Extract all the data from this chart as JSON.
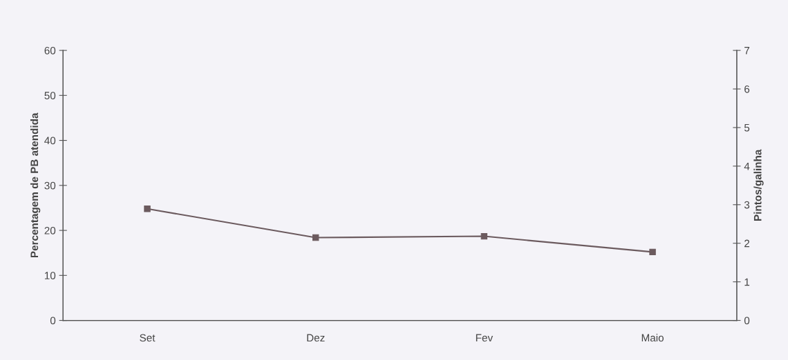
{
  "chart_data": {
    "type": "line",
    "categories": [
      "Set",
      "Dez",
      "Fev",
      "Maio"
    ],
    "series": [
      {
        "color": "#6b5a5e",
        "values": [
          24.8,
          18.4,
          18.7,
          15.2
        ]
      }
    ],
    "ylabel": "Percentagem de PB atendida",
    "y2label": "Pintos/galinha",
    "ylim": [
      0,
      60
    ],
    "yticks": [
      0,
      10,
      20,
      30,
      40,
      50,
      60
    ],
    "y2lim": [
      0,
      7
    ],
    "y2ticks": [
      0,
      1,
      2,
      3,
      4,
      5,
      6,
      7
    ],
    "marker": "square",
    "line_style": "solid",
    "grid": false,
    "legend": false
  }
}
